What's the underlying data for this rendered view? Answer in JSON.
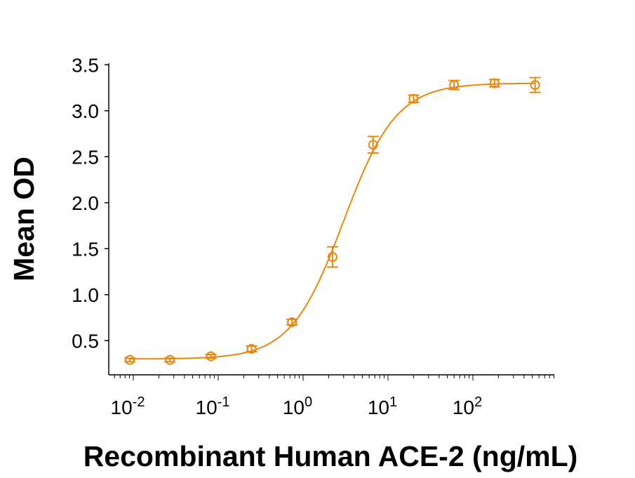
{
  "chart_data": {
    "type": "scatter",
    "title": "",
    "xlabel": "Recombinant Human ACE-2 (ng/mL)",
    "ylabel": "Mean OD",
    "x_scale": "log",
    "xlim": [
      0.0055,
      1500
    ],
    "ylim": [
      0.13,
      3.5
    ],
    "x_ticks": [
      {
        "value": 0.01,
        "base": "10",
        "exp": "-2"
      },
      {
        "value": 0.1,
        "base": "10",
        "exp": "-1"
      },
      {
        "value": 1,
        "base": "10",
        "exp": "0"
      },
      {
        "value": 10,
        "base": "10",
        "exp": "1"
      },
      {
        "value": 100,
        "base": "10",
        "exp": "2"
      }
    ],
    "y_ticks": [
      "0.5",
      "1.0",
      "1.5",
      "2.0",
      "2.5",
      "3.0",
      "3.5"
    ],
    "grid": false,
    "color": "#E8870E",
    "series": [
      {
        "x": [
          0.0091,
          0.027,
          0.082,
          0.247,
          0.74,
          2.22,
          6.67,
          20,
          60,
          180,
          540
        ],
        "y": [
          0.29,
          0.29,
          0.33,
          0.41,
          0.7,
          1.41,
          2.63,
          3.13,
          3.28,
          3.3,
          3.28
        ],
        "error": [
          0.02,
          0.02,
          0.02,
          0.03,
          0.03,
          0.11,
          0.09,
          0.04,
          0.05,
          0.04,
          0.08
        ]
      }
    ],
    "fit": {
      "model": "4PL",
      "bottom": 0.3,
      "top": 3.3,
      "ec50": 3.0,
      "hill": 1.4
    }
  }
}
